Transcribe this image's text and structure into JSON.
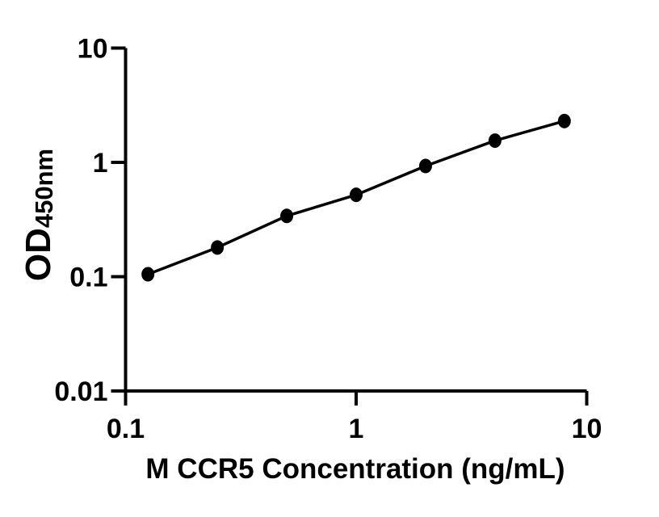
{
  "figure": {
    "background_color": "#ffffff",
    "axis_color": "#000000",
    "marker_color": "#000000",
    "curve_color": "#000000"
  },
  "chart_data": {
    "type": "scatter",
    "title": "",
    "xlabel": "M CCR5 Concentration (ng/mL)",
    "ylabel_main": "OD",
    "ylabel_sub": "450nm",
    "xscale": "log",
    "yscale": "log",
    "xlim": [
      0.1,
      10
    ],
    "ylim": [
      0.01,
      10
    ],
    "grid": false,
    "legend": "none",
    "x": [
      0.125,
      0.25,
      0.5,
      1,
      2,
      4,
      8
    ],
    "y": [
      0.105,
      0.18,
      0.34,
      0.52,
      0.93,
      1.55,
      2.3
    ],
    "x_ticks": [
      {
        "value": 0.1,
        "label": "0.1"
      },
      {
        "value": 1,
        "label": "1"
      },
      {
        "value": 10,
        "label": "10"
      }
    ],
    "y_ticks": [
      {
        "value": 10,
        "label": "10"
      },
      {
        "value": 1,
        "label": "1"
      },
      {
        "value": 0.1,
        "label": "0.1"
      },
      {
        "value": 0.01,
        "label": "0.01"
      }
    ]
  }
}
